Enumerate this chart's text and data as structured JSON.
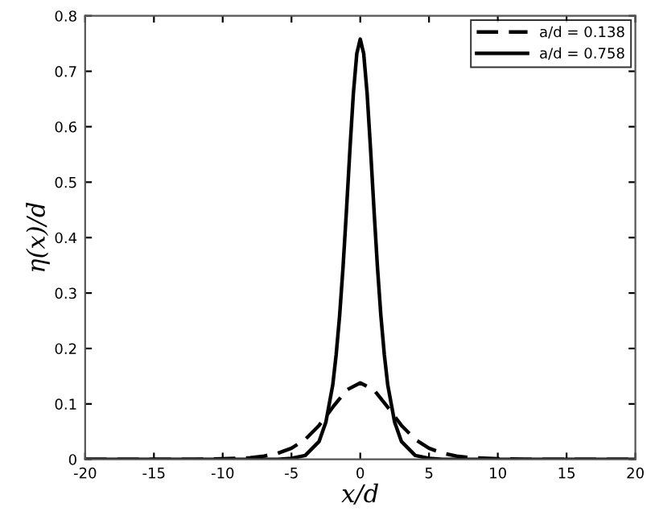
{
  "chart_data": {
    "type": "line",
    "xlabel": "x/d",
    "ylabel": "η(x)/d",
    "xlim": [
      -20,
      20
    ],
    "xticks": [
      -20,
      -15,
      -10,
      -5,
      0,
      5,
      10,
      15,
      20
    ],
    "ylim": [
      0,
      0.8
    ],
    "yticks": [
      0,
      0.1,
      0.2,
      0.3,
      0.4,
      0.5,
      0.6,
      0.7,
      0.8
    ],
    "grid": false,
    "legend": "top right",
    "marker": "none",
    "series": [
      {
        "name": "a/d = 0.138",
        "color": "#000000",
        "line_style": "dashed",
        "x": [
          -20,
          -15,
          -12,
          -10,
          -8,
          -7,
          -6,
          -5,
          -4,
          -3,
          -2,
          -1,
          0,
          1,
          2,
          3,
          4,
          5,
          6,
          7,
          8,
          10,
          12,
          15,
          20
        ],
        "values": [
          0,
          0,
          0,
          0.001,
          0.003,
          0.006,
          0.011,
          0.02,
          0.036,
          0.061,
          0.094,
          0.125,
          0.138,
          0.125,
          0.094,
          0.061,
          0.036,
          0.02,
          0.011,
          0.006,
          0.003,
          0.001,
          0,
          0,
          0
        ]
      },
      {
        "name": "a/d = 0.758",
        "color": "#000000",
        "line_style": "solid",
        "x": [
          -20,
          -10,
          -8,
          -6,
          -5,
          -4,
          -3,
          -2.5,
          -2,
          -1.75,
          -1.5,
          -1.25,
          -1,
          -0.75,
          -0.5,
          -0.25,
          0,
          0.25,
          0.5,
          0.75,
          1,
          1.25,
          1.5,
          1.75,
          2,
          2.5,
          3,
          4,
          5,
          6,
          8,
          10,
          20
        ],
        "values": [
          0,
          0,
          0,
          0,
          0.002,
          0.007,
          0.032,
          0.067,
          0.134,
          0.189,
          0.259,
          0.347,
          0.45,
          0.559,
          0.66,
          0.732,
          0.758,
          0.732,
          0.66,
          0.559,
          0.45,
          0.347,
          0.259,
          0.189,
          0.134,
          0.067,
          0.032,
          0.007,
          0.002,
          0,
          0,
          0,
          0
        ]
      }
    ]
  }
}
